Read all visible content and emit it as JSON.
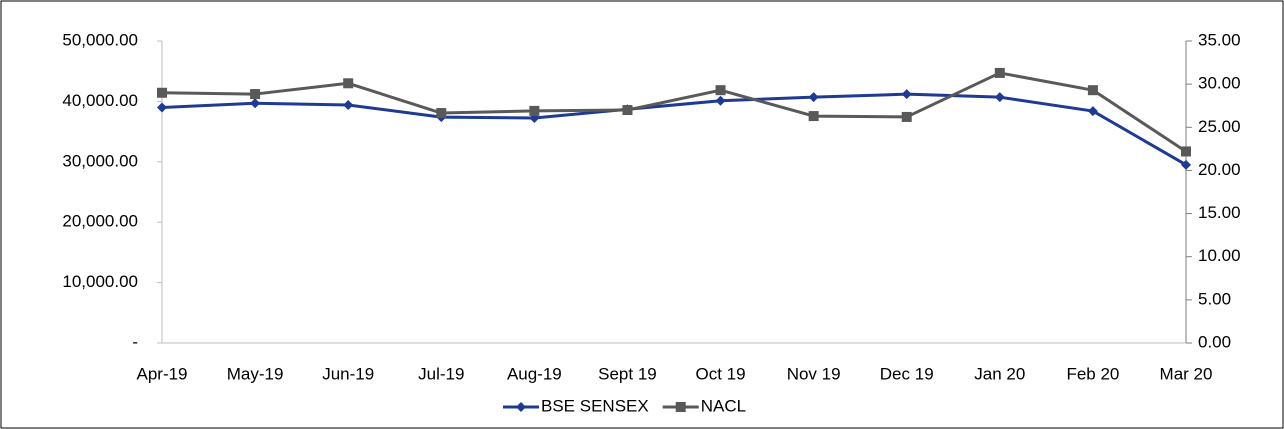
{
  "chart_data": {
    "type": "line",
    "categories": [
      "Apr-19",
      "May-19",
      "Jun-19",
      "Jul-19",
      "Aug-19",
      "Sept 19",
      "Oct 19",
      "Nov 19",
      "Dec 19",
      "Jan 20",
      "Feb 20",
      "Mar 20"
    ],
    "series": [
      {
        "name": "BSE SENSEX",
        "color": "#1f3a93",
        "marker": "diamond",
        "axis": "y",
        "values": [
          39000,
          39700,
          39400,
          37400,
          37250,
          38700,
          40100,
          40700,
          41200,
          40700,
          38400,
          29500
        ]
      },
      {
        "name": "NACL",
        "color": "#595959",
        "marker": "square",
        "axis": "y2",
        "values": [
          29.0,
          28.85,
          30.1,
          26.65,
          26.9,
          27.0,
          29.3,
          26.3,
          26.2,
          31.3,
          29.3,
          22.2
        ]
      }
    ],
    "ylim": [
      0,
      50000
    ],
    "yticks": [
      {
        "value": 0,
        "label": "-"
      },
      {
        "value": 10000,
        "label": "10,000.00"
      },
      {
        "value": 20000,
        "label": "20,000.00"
      },
      {
        "value": 30000,
        "label": "30,000.00"
      },
      {
        "value": 40000,
        "label": "40,000.00"
      },
      {
        "value": 50000,
        "label": "50,000.00"
      }
    ],
    "y2lim": [
      0,
      35
    ],
    "y2ticks": [
      {
        "value": 0,
        "label": "0.00"
      },
      {
        "value": 5,
        "label": "5.00"
      },
      {
        "value": 10,
        "label": "10.00"
      },
      {
        "value": 15,
        "label": "15.00"
      },
      {
        "value": 20,
        "label": "20.00"
      },
      {
        "value": 25,
        "label": "25.00"
      },
      {
        "value": 30,
        "label": "30.00"
      },
      {
        "value": 35,
        "label": "35.00"
      }
    ],
    "grid": false,
    "legend": "bottom"
  }
}
